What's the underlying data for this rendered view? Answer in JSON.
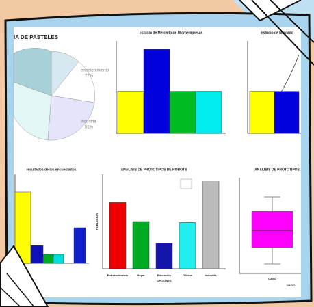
{
  "panels": [
    {
      "title": "IA DE PASTELES",
      "labels": [
        "entretenimiento",
        "72%",
        "industria",
        "51%"
      ]
    },
    {
      "title": "Estudio de Mercado de Microempresas",
      "ylim": [
        0,
        4.4
      ],
      "values": [
        2,
        4,
        2,
        2
      ],
      "colors": [
        "#ffff00",
        "#0000dd",
        "#00bb22",
        "#00eeee"
      ]
    },
    {
      "title": "Estudio de Mercado",
      "ylim": [
        0,
        4.4
      ],
      "values": [
        2,
        2
      ],
      "colors": [
        "#ffff00",
        "#0000dd"
      ]
    },
    {
      "title": "resultados de los encuestados",
      "ylim": [
        0,
        10
      ],
      "values": [
        8,
        2,
        1,
        1,
        4
      ],
      "colors": [
        "#ffff00",
        "#1010bb",
        "#00aa22",
        "#00dddd",
        "#1020cc"
      ]
    },
    {
      "title": "ANALISIS DE PROTOTIPOS DE ROBOTS",
      "ylim": [
        0,
        100
      ],
      "values": [
        70,
        50,
        27,
        49,
        93
      ],
      "colors": [
        "#ee0000",
        "#00aa22",
        "#1515aa",
        "#22eeee",
        "#bbbbbb"
      ],
      "categories": [
        "Entretenimiento",
        "Hogar",
        "Educación",
        "Oficina",
        "Industria"
      ],
      "xlabel": "OPCIONES",
      "ylabel": "POBLACION"
    },
    {
      "title": "ANALISIS DE PROTOTIPOS",
      "ylim": [
        0,
        100
      ],
      "box": {
        "low": 10,
        "q1": 27,
        "median": 45,
        "q3": 65,
        "high": 80
      },
      "category": "CASO",
      "xlabel": "OPCIO"
    }
  ]
}
